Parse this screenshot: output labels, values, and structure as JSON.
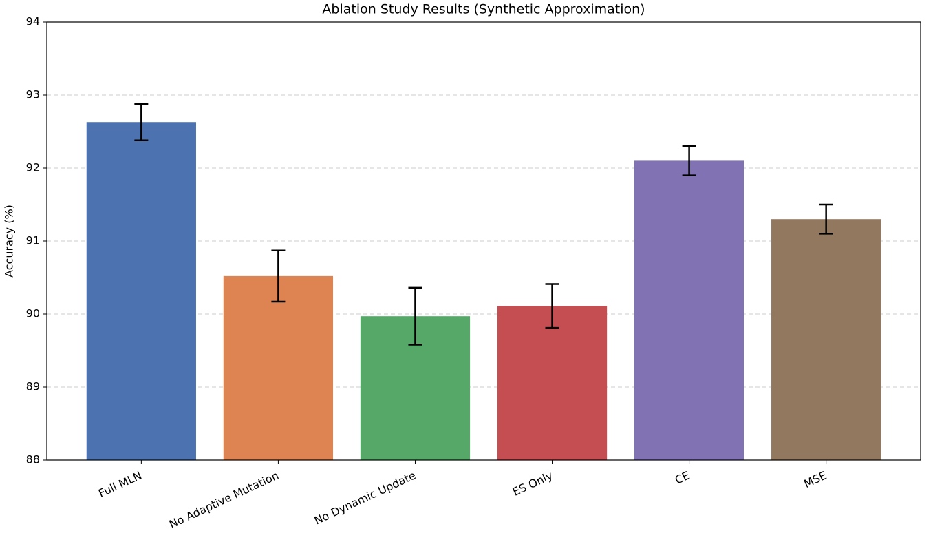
{
  "chart_data": {
    "type": "bar",
    "title": "Ablation Study Results (Synthetic Approximation)",
    "y_label": "Accuracy (%)",
    "categories": [
      "Full MLN",
      "No Adaptive Mutation",
      "No Dynamic Update",
      "ES Only",
      "CE",
      "MSE"
    ],
    "values": [
      92.63,
      90.52,
      89.97,
      90.11,
      92.1,
      91.3
    ],
    "errors": [
      0.25,
      0.35,
      0.39,
      0.3,
      0.2,
      0.2
    ],
    "colors": [
      "#4c72b0",
      "#dd8452",
      "#55a868",
      "#c44e52",
      "#8172b3",
      "#937860"
    ],
    "ylim": [
      88,
      94
    ],
    "yticks": [
      88,
      89,
      90,
      91,
      92,
      93,
      94
    ],
    "grid": true
  }
}
